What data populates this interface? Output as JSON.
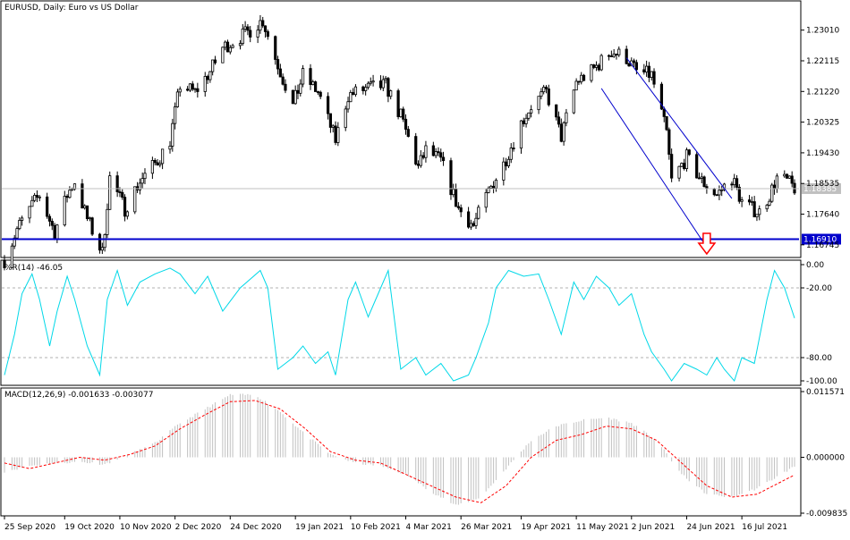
{
  "chart_data": [
    {
      "type": "candlestick",
      "title": "EURUSD, Daily:  Euro vs US Dollar",
      "ylim": [
        1.1648,
        1.2368
      ],
      "price_ticks": [
        "1.23010",
        "1.22115",
        "1.21220",
        "1.20325",
        "1.19430",
        "1.18535",
        "1.17640",
        "1.16745"
      ],
      "price_tick_values": [
        1.2301,
        1.22115,
        1.2122,
        1.20325,
        1.1943,
        1.18535,
        1.1764,
        1.16745
      ],
      "current_price_label": "1.18385",
      "current_price": 1.18385,
      "hline_label": "1.16910",
      "hline_value": 1.1691,
      "channel_lines": [
        {
          "from": [
            "2021-05-21",
            1.2131
          ],
          "to": [
            "2021-07-01",
            1.1678
          ]
        },
        {
          "from": [
            "2021-05-31",
            1.222
          ],
          "to": [
            "2021-07-12",
            1.181
          ]
        }
      ],
      "arrow": {
        "date": "2021-07-02",
        "direction": "down"
      },
      "close_path": [
        [
          "2020-09-25",
          1.163
        ],
        [
          "2020-09-30",
          1.172
        ],
        [
          "2020-10-06",
          1.179
        ],
        [
          "2020-10-09",
          1.182
        ],
        [
          "2020-10-15",
          1.171
        ],
        [
          "2020-10-20",
          1.182
        ],
        [
          "2020-10-23",
          1.186
        ],
        [
          "2020-10-28",
          1.175
        ],
        [
          "2020-11-03",
          1.165
        ],
        [
          "2020-11-06",
          1.187
        ],
        [
          "2020-11-12",
          1.178
        ],
        [
          "2020-11-18",
          1.186
        ],
        [
          "2020-11-25",
          1.192
        ],
        [
          "2020-11-30",
          1.198
        ],
        [
          "2020-12-04",
          1.214
        ],
        [
          "2020-12-10",
          1.212
        ],
        [
          "2020-12-16",
          1.218
        ],
        [
          "2020-12-21",
          1.225
        ],
        [
          "2020-12-30",
          1.229
        ],
        [
          "2021-01-06",
          1.233
        ],
        [
          "2021-01-11",
          1.222
        ],
        [
          "2021-01-18",
          1.208
        ],
        [
          "2021-01-22",
          1.217
        ],
        [
          "2021-01-28",
          1.212
        ],
        [
          "2021-02-04",
          1.198
        ],
        [
          "2021-02-09",
          1.211
        ],
        [
          "2021-02-16",
          1.213
        ],
        [
          "2021-02-24",
          1.214
        ],
        [
          "2021-03-02",
          1.205
        ],
        [
          "2021-03-09",
          1.19
        ],
        [
          "2021-03-12",
          1.195
        ],
        [
          "2021-03-18",
          1.192
        ],
        [
          "2021-03-25",
          1.178
        ],
        [
          "2021-03-31",
          1.173
        ],
        [
          "2021-04-06",
          1.183
        ],
        [
          "2021-04-12",
          1.191
        ],
        [
          "2021-04-19",
          1.203
        ],
        [
          "2021-04-23",
          1.208
        ],
        [
          "2021-04-29",
          1.212
        ],
        [
          "2021-05-05",
          1.199
        ],
        [
          "2021-05-11",
          1.215
        ],
        [
          "2021-05-17",
          1.218
        ],
        [
          "2021-05-25",
          1.224
        ],
        [
          "2021-05-31",
          1.222
        ],
        [
          "2021-06-04",
          1.218
        ],
        [
          "2021-06-10",
          1.217
        ],
        [
          "2021-06-16",
          1.2
        ],
        [
          "2021-06-18",
          1.186
        ],
        [
          "2021-06-24",
          1.193
        ],
        [
          "2021-06-30",
          1.186
        ],
        [
          "2021-07-06",
          1.182
        ],
        [
          "2021-07-12",
          1.187
        ],
        [
          "2021-07-16",
          1.18
        ],
        [
          "2021-07-20",
          1.178
        ],
        [
          "2021-07-23",
          1.177
        ],
        [
          "2021-07-27",
          1.182
        ],
        [
          "2021-07-30",
          1.187
        ],
        [
          "2021-08-03",
          1.186
        ],
        [
          "2021-08-06",
          1.184
        ]
      ]
    },
    {
      "type": "line",
      "title": "%R(14) -46.05",
      "ylim": [
        -100,
        0
      ],
      "y_ticks": [
        "0.00",
        "-20.00",
        "-80.00",
        "-100.00"
      ],
      "y_tick_values": [
        0,
        -20,
        -80,
        -100
      ],
      "levels": [
        -20,
        -80
      ],
      "series": [
        {
          "color": "#00d8e8",
          "points": [
            [
              "2020-09-25",
              -95
            ],
            [
              "2020-09-29",
              -60
            ],
            [
              "2020-10-02",
              -25
            ],
            [
              "2020-10-06",
              -8
            ],
            [
              "2020-10-09",
              -30
            ],
            [
              "2020-10-13",
              -70
            ],
            [
              "2020-10-16",
              -40
            ],
            [
              "2020-10-20",
              -10
            ],
            [
              "2020-10-23",
              -30
            ],
            [
              "2020-10-28",
              -70
            ],
            [
              "2020-11-02",
              -95
            ],
            [
              "2020-11-05",
              -30
            ],
            [
              "2020-11-09",
              -5
            ],
            [
              "2020-11-13",
              -35
            ],
            [
              "2020-11-18",
              -15
            ],
            [
              "2020-11-24",
              -8
            ],
            [
              "2020-11-30",
              -3
            ],
            [
              "2020-12-04",
              -8
            ],
            [
              "2020-12-10",
              -25
            ],
            [
              "2020-12-15",
              -10
            ],
            [
              "2020-12-21",
              -40
            ],
            [
              "2020-12-28",
              -20
            ],
            [
              "2021-01-05",
              -5
            ],
            [
              "2021-01-08",
              -20
            ],
            [
              "2021-01-12",
              -90
            ],
            [
              "2021-01-18",
              -80
            ],
            [
              "2021-01-22",
              -70
            ],
            [
              "2021-01-27",
              -85
            ],
            [
              "2021-02-01",
              -75
            ],
            [
              "2021-02-04",
              -95
            ],
            [
              "2021-02-09",
              -30
            ],
            [
              "2021-02-12",
              -15
            ],
            [
              "2021-02-17",
              -45
            ],
            [
              "2021-02-22",
              -20
            ],
            [
              "2021-02-25",
              -5
            ],
            [
              "2021-03-02",
              -90
            ],
            [
              "2021-03-08",
              -80
            ],
            [
              "2021-03-12",
              -95
            ],
            [
              "2021-03-18",
              -85
            ],
            [
              "2021-03-23",
              -100
            ],
            [
              "2021-03-29",
              -95
            ],
            [
              "2021-04-01",
              -80
            ],
            [
              "2021-04-06",
              -50
            ],
            [
              "2021-04-09",
              -20
            ],
            [
              "2021-04-14",
              -5
            ],
            [
              "2021-04-20",
              -10
            ],
            [
              "2021-04-26",
              -8
            ],
            [
              "2021-04-30",
              -30
            ],
            [
              "2021-05-05",
              -60
            ],
            [
              "2021-05-10",
              -15
            ],
            [
              "2021-05-14",
              -30
            ],
            [
              "2021-05-19",
              -10
            ],
            [
              "2021-05-24",
              -20
            ],
            [
              "2021-05-28",
              -35
            ],
            [
              "2021-06-02",
              -25
            ],
            [
              "2021-06-07",
              -60
            ],
            [
              "2021-06-10",
              -75
            ],
            [
              "2021-06-15",
              -90
            ],
            [
              "2021-06-18",
              -100
            ],
            [
              "2021-06-23",
              -85
            ],
            [
              "2021-06-28",
              -90
            ],
            [
              "2021-07-02",
              -95
            ],
            [
              "2021-07-06",
              -80
            ],
            [
              "2021-07-09",
              -90
            ],
            [
              "2021-07-13",
              -100
            ],
            [
              "2021-07-16",
              -80
            ],
            [
              "2021-07-21",
              -85
            ],
            [
              "2021-07-26",
              -30
            ],
            [
              "2021-07-29",
              -5
            ],
            [
              "2021-08-02",
              -20
            ],
            [
              "2021-08-06",
              -46
            ]
          ]
        }
      ]
    },
    {
      "type": "histogram_line",
      "title": "MACD(12,26,9) -0.001633 -0.003077",
      "ylim": [
        -0.009835,
        0.011571
      ],
      "y_ticks": [
        "0.011571",
        "0.000000",
        "-0.009835"
      ],
      "y_tick_values": [
        0.011571,
        0.0,
        -0.009835
      ],
      "histogram_color": "#c0c0c0",
      "signal_color": "#ff0000",
      "histogram": [
        [
          "2020-09-25",
          -0.0025
        ],
        [
          "2020-10-05",
          -0.0015
        ],
        [
          "2020-10-15",
          -0.001
        ],
        [
          "2020-10-25",
          -0.0008
        ],
        [
          "2020-11-04",
          -0.0012
        ],
        [
          "2020-11-14",
          0.0005
        ],
        [
          "2020-11-24",
          0.0025
        ],
        [
          "2020-12-04",
          0.006
        ],
        [
          "2020-12-14",
          0.0085
        ],
        [
          "2020-12-24",
          0.011
        ],
        [
          "2021-01-03",
          0.011
        ],
        [
          "2021-01-13",
          0.008
        ],
        [
          "2021-01-23",
          0.004
        ],
        [
          "2021-02-02",
          0.0005
        ],
        [
          "2021-02-12",
          -0.001
        ],
        [
          "2021-02-22",
          -0.0015
        ],
        [
          "2021-03-04",
          -0.003
        ],
        [
          "2021-03-14",
          -0.006
        ],
        [
          "2021-03-24",
          -0.0085
        ],
        [
          "2021-04-03",
          -0.007
        ],
        [
          "2021-04-13",
          -0.002
        ],
        [
          "2021-04-23",
          0.003
        ],
        [
          "2021-05-03",
          0.0055
        ],
        [
          "2021-05-13",
          0.0065
        ],
        [
          "2021-05-23",
          0.007
        ],
        [
          "2021-06-02",
          0.006
        ],
        [
          "2021-06-12",
          0.003
        ],
        [
          "2021-06-22",
          -0.003
        ],
        [
          "2021-07-02",
          -0.0065
        ],
        [
          "2021-07-12",
          -0.007
        ],
        [
          "2021-07-22",
          -0.0055
        ],
        [
          "2021-08-06",
          -0.0016
        ]
      ],
      "signal": [
        [
          "2020-09-25",
          -0.001
        ],
        [
          "2020-10-05",
          -0.002
        ],
        [
          "2020-10-15",
          -0.001
        ],
        [
          "2020-10-25",
          0.0
        ],
        [
          "2020-11-04",
          -0.0005
        ],
        [
          "2020-11-14",
          0.0005
        ],
        [
          "2020-11-24",
          0.002
        ],
        [
          "2020-12-04",
          0.005
        ],
        [
          "2020-12-14",
          0.0075
        ],
        [
          "2020-12-24",
          0.0098
        ],
        [
          "2021-01-03",
          0.01
        ],
        [
          "2021-01-13",
          0.0085
        ],
        [
          "2021-01-23",
          0.005
        ],
        [
          "2021-02-02",
          0.001
        ],
        [
          "2021-02-12",
          -0.0005
        ],
        [
          "2021-02-22",
          -0.001
        ],
        [
          "2021-03-04",
          -0.003
        ],
        [
          "2021-03-14",
          -0.005
        ],
        [
          "2021-03-24",
          -0.007
        ],
        [
          "2021-04-03",
          -0.008
        ],
        [
          "2021-04-13",
          -0.005
        ],
        [
          "2021-04-23",
          0.0
        ],
        [
          "2021-05-03",
          0.003
        ],
        [
          "2021-05-13",
          0.004
        ],
        [
          "2021-05-23",
          0.0055
        ],
        [
          "2021-06-02",
          0.005
        ],
        [
          "2021-06-12",
          0.003
        ],
        [
          "2021-06-22",
          -0.001
        ],
        [
          "2021-07-02",
          -0.005
        ],
        [
          "2021-07-12",
          -0.007
        ],
        [
          "2021-07-22",
          -0.0065
        ],
        [
          "2021-08-06",
          -0.0031
        ]
      ]
    }
  ],
  "x_axis": {
    "range": [
      "2020-09-25",
      "2021-08-06"
    ],
    "ticks": [
      "25 Sep 2020",
      "19 Oct 2020",
      "10 Nov 2020",
      "2 Dec 2020",
      "24 Dec 2020",
      "19 Jan 2021",
      "10 Feb 2021",
      "4 Mar 2021",
      "26 Mar 2021",
      "19 Apr 2021",
      "11 May 2021",
      "2 Jun 2021",
      "24 Jun 2021",
      "16 Jul 2021"
    ],
    "tick_dates": [
      "2020-09-25",
      "2020-10-19",
      "2020-11-10",
      "2020-12-02",
      "2020-12-24",
      "2021-01-19",
      "2021-02-10",
      "2021-03-04",
      "2021-03-26",
      "2021-04-19",
      "2021-05-11",
      "2021-06-02",
      "2021-06-24",
      "2021-07-16"
    ]
  },
  "colors": {
    "candle": "#000000",
    "horizontal_line": "#0000cc",
    "channel": "#0000cc",
    "arrow": "#ff0000",
    "wpr_line": "#00d8e8",
    "macd_signal": "#ff0000",
    "macd_histogram": "#c0c0c0"
  }
}
